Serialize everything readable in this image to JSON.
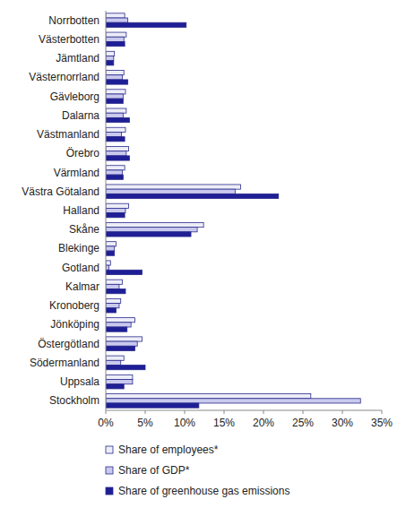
{
  "chart_data": {
    "type": "bar",
    "orientation": "horizontal",
    "grid": false,
    "legend": "bottom",
    "categories": [
      "Norrbotten",
      "Västerbotten",
      "Jämtland",
      "Västernorrland",
      "Gävleborg",
      "Dalarna",
      "Västmanland",
      "Örebro",
      "Värmland",
      "Västra Götaland",
      "Halland",
      "Skåne",
      "Blekinge",
      "Gotland",
      "Kalmar",
      "Kronoberg",
      "Jönköping",
      "Östergötland",
      "Södermanland",
      "Uppsala",
      "Stockholm"
    ],
    "series": [
      {
        "name": "Share of employees*",
        "color": "#ededf8",
        "values": [
          2.4,
          2.6,
          1.1,
          2.3,
          2.5,
          2.6,
          2.5,
          2.9,
          2.4,
          17.1,
          2.9,
          12.4,
          1.3,
          0.6,
          2.1,
          1.9,
          3.7,
          4.6,
          2.3,
          3.4,
          26.0
        ]
      },
      {
        "name": "Share of GDP*",
        "color": "#c9c9ee",
        "values": [
          2.8,
          2.3,
          1.0,
          2.1,
          2.2,
          2.2,
          2.0,
          2.6,
          2.1,
          16.4,
          2.5,
          11.6,
          1.1,
          0.4,
          1.7,
          1.7,
          3.2,
          4.0,
          1.9,
          3.4,
          32.3
        ]
      },
      {
        "name": "Share of greenhouse gas emissions",
        "color": "#1e1e96",
        "values": [
          10.2,
          2.4,
          1.0,
          2.8,
          2.2,
          3.0,
          2.4,
          3.0,
          2.2,
          21.9,
          2.4,
          10.8,
          1.1,
          4.6,
          2.5,
          1.3,
          2.7,
          3.7,
          5.0,
          2.3,
          11.8
        ]
      }
    ],
    "xlim": [
      0,
      35
    ],
    "xticks": [
      {
        "value": 0,
        "label": "0%"
      },
      {
        "value": 5,
        "label": "5%"
      },
      {
        "value": 10,
        "label": "10%"
      },
      {
        "value": 15,
        "label": "15%"
      },
      {
        "value": 20,
        "label": "20%"
      },
      {
        "value": 25,
        "label": "25%"
      },
      {
        "value": 30,
        "label": "30%"
      },
      {
        "value": 35,
        "label": "35%"
      }
    ]
  }
}
